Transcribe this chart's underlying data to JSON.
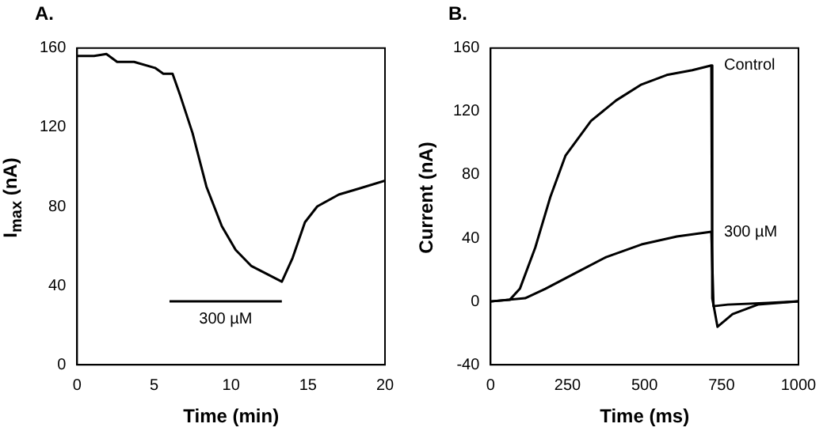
{
  "chart_data": [
    {
      "type": "line",
      "title": "A.",
      "xlabel": "Time (min)",
      "ylabel": "I$_{max}$ (nA)",
      "xlim": [
        0,
        20
      ],
      "xticks": [
        0,
        5,
        10,
        15,
        20
      ],
      "ylim": [
        0,
        160
      ],
      "yticks": [
        0,
        40,
        80,
        120,
        160
      ],
      "marker": "none",
      "series": [
        {
          "color": "#000000",
          "x": [
            0,
            1.1,
            1.9,
            2.6,
            3.7,
            5.06,
            5.6,
            6.2,
            6.7,
            7.5,
            8.4,
            9.4,
            10.3,
            11.3,
            12.3,
            13.3,
            14,
            14.8,
            15.6,
            17,
            18.3,
            20
          ],
          "values": [
            156,
            156,
            157,
            153,
            153,
            150,
            147,
            147,
            136,
            117,
            90,
            70,
            58,
            50,
            46,
            42,
            54,
            72,
            80,
            86,
            89,
            93
          ]
        },
        {
          "name": "300 µM",
          "color": "#000000",
          "x": [
            6,
            13.3
          ],
          "values": [
            32,
            32
          ]
        }
      ],
      "legend": false
    },
    {
      "type": "line",
      "title": "B.",
      "xlabel": "Time (ms)",
      "ylabel": "Current (nA)",
      "xlim": [
        0,
        1000
      ],
      "xticks": [
        0,
        250,
        500,
        750,
        1000
      ],
      "ylim": [
        -40,
        160
      ],
      "yticks": [
        -40,
        0,
        40,
        80,
        120,
        160
      ],
      "marker": "none",
      "series": [
        {
          "name": "Control",
          "color": "#000000",
          "x": [
            0,
            62,
            95,
            145,
            194,
            243,
            326,
            408,
            490,
            572,
            655,
            717,
            720,
            737,
            786,
            868,
            1000
          ],
          "values": [
            0,
            1,
            8,
            34,
            66,
            92,
            114,
            127,
            137,
            143,
            146,
            149,
            2,
            -16,
            -8,
            -2,
            0
          ]
        },
        {
          "name": "300 µM",
          "color": "#000000",
          "x": [
            0,
            112,
            178,
            276,
            375,
            490,
            605,
            717,
            724,
            770,
            901,
            1000
          ],
          "values": [
            0,
            2,
            8,
            18,
            28,
            36,
            41,
            44,
            -3,
            -2,
            -1,
            0
          ]
        }
      ]
    }
  ]
}
